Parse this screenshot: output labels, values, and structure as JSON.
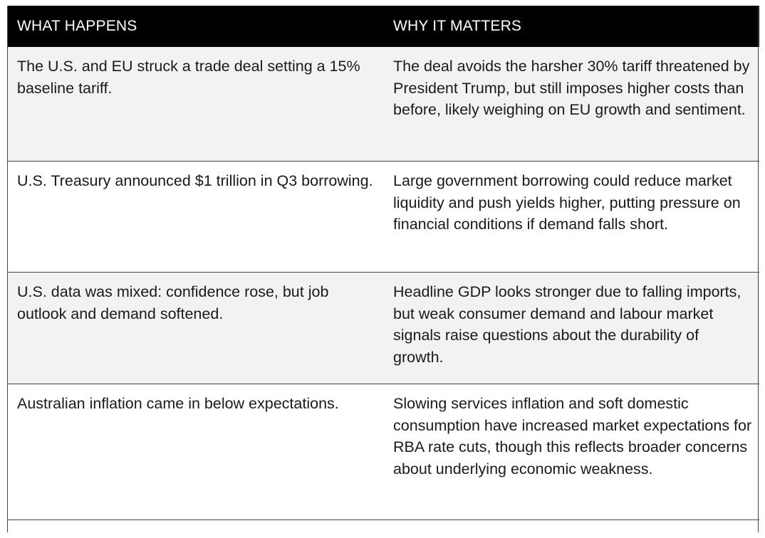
{
  "table": {
    "headers": [
      "WHAT HAPPENS",
      "WHY IT MATTERS"
    ],
    "rows": [
      {
        "what": "The U.S. and EU struck a trade deal setting a 15% baseline tariff.",
        "why": "The deal avoids the harsher 30% tariff threatened by President Trump, but still imposes higher costs than before, likely weighing on EU growth and sentiment."
      },
      {
        "what": "U.S. Treasury announced $1 trillion in Q3 borrowing.",
        "why": "Large government borrowing could reduce market liquidity and push yields higher, putting pressure on financial conditions if demand falls short."
      },
      {
        "what": "U.S. data was mixed: confidence rose, but job outlook and demand softened.",
        "why": "Headline GDP looks stronger due to falling imports, but weak consumer demand and labour market signals raise questions about the durability of growth."
      },
      {
        "what": "Australian inflation came in below expectations.",
        "why": "Slowing services inflation and soft domestic consumption have increased market expectations for RBA rate cuts, though this reflects broader concerns about underlying economic weakness."
      }
    ],
    "colors": {
      "header_bg": "#000000",
      "header_text": "#ffffff",
      "row_shade": "#f2f2f2",
      "row_plain": "#ffffff",
      "rule": "#444444"
    }
  }
}
